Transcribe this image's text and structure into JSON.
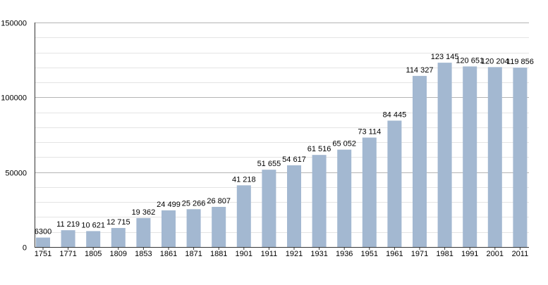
{
  "chart_data": {
    "type": "bar",
    "title": "",
    "xlabel": "",
    "ylabel": "",
    "categories": [
      "1751",
      "1771",
      "1805",
      "1809",
      "1853",
      "1861",
      "1871",
      "1881",
      "1901",
      "1911",
      "1921",
      "1931",
      "1936",
      "1951",
      "1961",
      "1971",
      "1981",
      "1991",
      "2001",
      "2011"
    ],
    "values": [
      6300,
      11219,
      10621,
      12715,
      19362,
      24499,
      25266,
      26807,
      41218,
      51655,
      54617,
      61516,
      65052,
      73114,
      84445,
      114327,
      123145,
      120651,
      120204,
      119856
    ],
    "value_labels": [
      "6300",
      "11 219",
      "10 621",
      "12 715",
      "19 362",
      "24 499",
      "25 266",
      "26 807",
      "41 218",
      "51 655",
      "54 617",
      "61 516",
      "65 052",
      "73 114",
      "84 445",
      "114 327",
      "123 145",
      "120 651",
      "120 204",
      "119 856"
    ],
    "y_ticks": [
      0,
      50000,
      100000,
      150000
    ],
    "y_tick_labels": [
      "0",
      "50000",
      "100000",
      "150000"
    ],
    "ylim": [
      0,
      150000
    ],
    "minor_grid_step": 10000,
    "grid": true,
    "legend": "none",
    "colors": {
      "bar": "#a3b8d1",
      "major_grid": "#b4b4b4",
      "minor_grid": "#e4e4e4",
      "axis": "#333333",
      "text": "#000000"
    }
  }
}
